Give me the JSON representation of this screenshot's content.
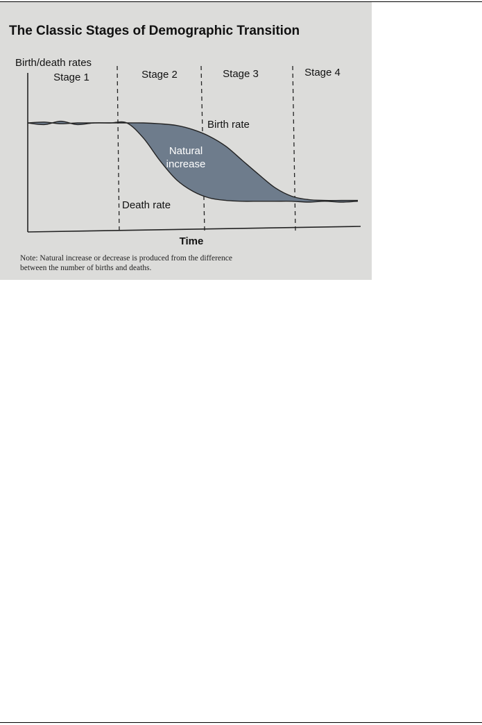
{
  "chart_data": {
    "type": "area",
    "title": "The Classic Stages of Demographic Transition",
    "xlabel": "Time",
    "ylabel": "Birth/death rates",
    "stages": [
      "Stage 1",
      "Stage 2",
      "Stage 3",
      "Stage 4"
    ],
    "series": [
      {
        "name": "Birth rate",
        "x": [
          0,
          0.5,
          1,
          1.5,
          2,
          2.5,
          3,
          3.5,
          4,
          4.5,
          5,
          5.5,
          6,
          6.5,
          7,
          7.5,
          8,
          8.5,
          9,
          9.5,
          10
        ],
        "values": [
          100,
          101,
          99,
          100,
          100,
          100,
          100,
          100,
          99,
          97,
          92,
          84,
          72,
          55,
          38,
          22,
          12,
          8,
          7,
          7,
          7
        ]
      },
      {
        "name": "Death rate",
        "x": [
          0,
          0.5,
          1,
          1.5,
          2,
          2.5,
          3,
          3.5,
          4,
          4.5,
          5,
          5.5,
          6,
          6.5,
          7,
          7.5,
          8,
          8.5,
          9,
          9.5,
          10
        ],
        "values": [
          100,
          98,
          102,
          98,
          100,
          100,
          100,
          82,
          55,
          32,
          18,
          10,
          7,
          6,
          6,
          6,
          6,
          5,
          6,
          5,
          6
        ]
      }
    ],
    "area_label": [
      "Natural",
      "increase"
    ],
    "note": [
      "Note: Natural increase or decrease is produced from the difference",
      "between the number of births and deaths."
    ],
    "legend": "none",
    "grid": false,
    "colors": {
      "fill": "#6e7c8c",
      "background": "#dcdcda"
    }
  }
}
